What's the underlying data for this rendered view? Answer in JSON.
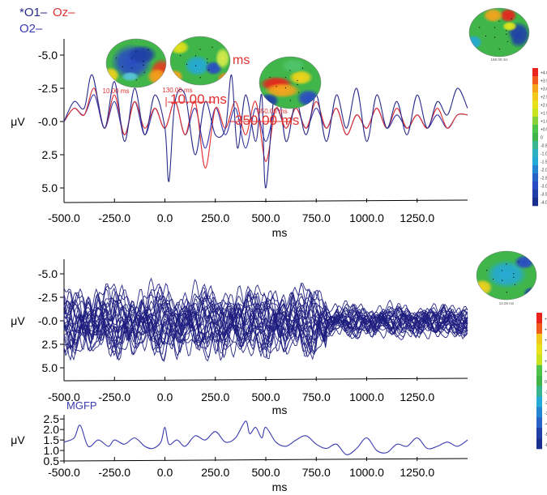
{
  "legend": {
    "o1": "*O1–",
    "oz": "Oz–",
    "o2": "O2–"
  },
  "colors": {
    "o1": "#2a2a8a",
    "oz": "#e03030",
    "o2": "#3a3ab0",
    "butterfly": "#1e1e80",
    "mgfp": "#3a3ab0"
  },
  "maps": {
    "labels": [
      "10.00 ms",
      "130.00 ms",
      "350.00 ms"
    ],
    "big_labels": [
      "10.00 ms",
      "350.00 ms"
    ],
    "partial_label": "ms"
  },
  "mgfp_label": "MGFP",
  "chart_data": [
    {
      "type": "line",
      "xlabel": "ms",
      "ylabel": "μV",
      "y_inverted": true,
      "xlim": [
        -500,
        1500
      ],
      "ylim": [
        -6,
        6
      ],
      "x_ticks": [
        "-500.0",
        "-250.0",
        "0.0",
        "250.0",
        "500.0",
        "750.0",
        "1000.0",
        "1250.0"
      ],
      "y_ticks": [
        "-5.0",
        "-2.5",
        "-0.0",
        "2.5",
        "5.0"
      ],
      "series": [
        {
          "name": "O1",
          "color": "#2a2a8a",
          "x": [
            -500,
            -450,
            -400,
            -360,
            -300,
            -250,
            -200,
            -150,
            -100,
            -50,
            0,
            20,
            50,
            100,
            150,
            200,
            250,
            300,
            330,
            360,
            400,
            450,
            480,
            500,
            550,
            600,
            650,
            700,
            750,
            800,
            850,
            900,
            950,
            1000,
            1050,
            1100,
            1150,
            1200,
            1250,
            1300,
            1350,
            1400,
            1450,
            1500
          ],
          "y": [
            0,
            -1.5,
            -1,
            -3.5,
            0.5,
            -3,
            1.5,
            -2.5,
            1,
            -2,
            0.5,
            4.5,
            -1.5,
            -2,
            2.5,
            -1.5,
            1,
            0.5,
            -3.5,
            2,
            -2,
            1.5,
            -2,
            5,
            -3,
            1.5,
            -1.5,
            1,
            -2,
            1.5,
            -2,
            0.5,
            -2.5,
            1.5,
            -2,
            0.5,
            -1.5,
            1,
            -2,
            0.5,
            -1.5,
            -0.5,
            -2.5,
            -1
          ]
        },
        {
          "name": "Oz",
          "color": "#e03030",
          "x": [
            -500,
            -450,
            -400,
            -350,
            -300,
            -250,
            -200,
            -150,
            -100,
            -50,
            0,
            50,
            100,
            150,
            200,
            250,
            300,
            350,
            400,
            450,
            500,
            550,
            600,
            650,
            700,
            750,
            800,
            850,
            900,
            950,
            1000,
            1050,
            1100,
            1150,
            1200,
            1250,
            1300,
            1350,
            1400,
            1450,
            1500
          ],
          "y": [
            0,
            -1,
            -0.5,
            -2.5,
            0.5,
            -2,
            1,
            -1.5,
            0.5,
            -1,
            0.5,
            -1.5,
            1,
            -1.5,
            3.5,
            -1,
            0.5,
            -1.5,
            1,
            -1.5,
            3,
            -1,
            0.5,
            -1,
            0.5,
            -1.5,
            0.5,
            -1,
            1,
            -0.5,
            0.5,
            -1,
            0.5,
            -1,
            0.5,
            -0.5,
            0.5,
            -1,
            0.5,
            -0.5,
            -0.5
          ]
        },
        {
          "name": "O2",
          "color": "#3a3ab0",
          "x": [
            -500,
            -450,
            -400,
            -350,
            -300,
            -250,
            -200,
            -150,
            -100,
            -50,
            0,
            50,
            100,
            150,
            200,
            250,
            300,
            350,
            400,
            450,
            500,
            550,
            600,
            650,
            700,
            750,
            800,
            850,
            900,
            950,
            1000,
            1050,
            1100,
            1150,
            1200,
            1250,
            1300,
            1350,
            1400,
            1450,
            1500
          ],
          "y": [
            0,
            -1,
            -0.5,
            -2,
            0.5,
            -1.5,
            1,
            -1.5,
            1,
            -1,
            0.5,
            -1.5,
            1,
            -1,
            2,
            -1,
            1,
            -1,
            2,
            -1,
            1.5,
            -1,
            0.5,
            -1,
            0.5,
            -1,
            0.5,
            -1,
            1,
            -0.5,
            0.5,
            -1,
            0.5,
            -0.5,
            0.5,
            -0.5,
            0.5,
            -0.5,
            0.5,
            -0.5,
            -0.5
          ]
        }
      ]
    },
    {
      "type": "line",
      "xlabel": "ms",
      "ylabel": "μV",
      "y_inverted": true,
      "xlim": [
        -500,
        1500
      ],
      "ylim": [
        -6,
        6
      ],
      "x_ticks": [
        "-500.0",
        "-250.0",
        "0.0",
        "250.0",
        "500.0",
        "750.0",
        "1000.0",
        "1250.0"
      ],
      "y_ticks": [
        "-5.0",
        "-2.5",
        "-0.0",
        "2.5",
        "5.0"
      ],
      "series_count": 28,
      "amplitude_range": [
        -5.5,
        5.5
      ]
    },
    {
      "type": "line",
      "xlabel": "ms",
      "ylabel": "μV",
      "xlim": [
        -500,
        1500
      ],
      "ylim": [
        0.5,
        2.7
      ],
      "x_ticks": [
        "-500.0",
        "-250.0",
        "0.0",
        "250.0",
        "500.0",
        "750.0",
        "1000.0",
        "1250.0"
      ],
      "y_ticks": [
        "2.5",
        "2.0",
        "1.5",
        "1.0",
        "0.5"
      ],
      "series": [
        {
          "name": "MGFP",
          "color": "#3a3ab0",
          "x": [
            -500,
            -450,
            -420,
            -380,
            -330,
            -280,
            -250,
            -200,
            -150,
            -100,
            -60,
            -20,
            0,
            20,
            60,
            100,
            150,
            200,
            250,
            300,
            350,
            400,
            420,
            450,
            480,
            500,
            550,
            600,
            650,
            700,
            750,
            800,
            850,
            900,
            950,
            1000,
            1050,
            1100,
            1150,
            1200,
            1250,
            1300,
            1350,
            1400,
            1450,
            1500
          ],
          "y": [
            1.4,
            1.6,
            2.2,
            1.2,
            1.5,
            1.2,
            1.5,
            1.3,
            1.6,
            1.2,
            1.1,
            1.4,
            2.1,
            1.3,
            1.5,
            1.2,
            1.7,
            1.5,
            1.9,
            1.4,
            1.6,
            2.4,
            1.8,
            2.1,
            1.6,
            2.1,
            1.4,
            1.2,
            1.5,
            1.7,
            1.3,
            1.1,
            1.3,
            0.8,
            1.1,
            1.6,
            1.0,
            0.9,
            1.3,
            1.2,
            1.6,
            1.1,
            1.2,
            1.4,
            1.2,
            1.5
          ]
        }
      ]
    }
  ],
  "colorbars": [
    {
      "labels": [
        "+4.0",
        "+3.5",
        "+3.0",
        "+2.5",
        "+2.0",
        "+1.5",
        "+1.0",
        "+0.5",
        "0",
        "-0.5",
        "-1.0",
        "-1.5",
        "-2.0",
        "-2.5",
        "-3.0",
        "-3.5",
        "-4.0"
      ]
    },
    {
      "labels": [
        "+6",
        "+5",
        "+4",
        "+3",
        "+2",
        "+1",
        "0",
        "-1",
        "-2",
        "-3",
        "-4",
        "-5",
        "-6"
      ]
    }
  ],
  "corner_maps": [
    {
      "label": "168.00 ms"
    },
    {
      "label": "14.00 ms"
    }
  ]
}
